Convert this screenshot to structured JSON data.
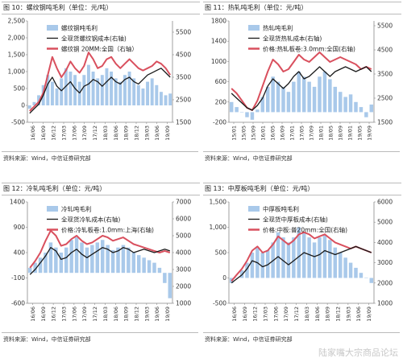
{
  "watermark": "陆家嘴大宗商品论坛",
  "colors": {
    "bar": "#a9c9ea",
    "cost": "#1a1a1a",
    "price": "#d9505e"
  },
  "chart_data": [
    {
      "type": "bar+line",
      "figure_label": "图 10：螺纹钢吨毛利（单位：元/吨）",
      "source": "资料来源：Wind，中信证券研究部",
      "left_axis": {
        "ylim": [
          -500,
          2500
        ],
        "ticks": [
          -500,
          0,
          500,
          1000,
          1500,
          2000,
          2500
        ],
        "labels": [
          "-500",
          "0",
          "500",
          "1,000",
          "1,500",
          "2,000",
          "2,500"
        ]
      },
      "right_axis": {
        "ylim": [
          1500,
          6000
        ],
        "ticks": [
          1500,
          2500,
          3500,
          4500,
          5500
        ],
        "labels": [
          "1500",
          "2500",
          "3500",
          "4500",
          "5500"
        ]
      },
      "x_ticks": [
        "16/06",
        "16/09",
        "16/12",
        "17/03",
        "17/06",
        "17/09",
        "17/12",
        "18/03",
        "18/06",
        "18/09",
        "18/12",
        "19/03",
        "19/06",
        "19/09"
      ],
      "legend": [
        {
          "name": "螺纹钢吨毛利",
          "kind": "bar"
        },
        {
          "name": "全现货螺纹钢成本(右轴)",
          "kind": "cost"
        },
        {
          "name": "螺纹钢 20MM:全国（右轴）",
          "kind": "price"
        }
      ],
      "bars": [
        -100,
        100,
        300,
        600,
        900,
        700,
        500,
        800,
        1100,
        1000,
        900,
        700,
        900,
        1200,
        1000,
        800,
        900,
        1100,
        1000,
        800,
        700,
        900,
        1000,
        800,
        600,
        500,
        700,
        800,
        600,
        400,
        300,
        350
      ],
      "cost": [
        1900,
        2100,
        2300,
        2700,
        3200,
        3500,
        3100,
        2900,
        3100,
        3300,
        3000,
        2800,
        3100,
        3200,
        3400,
        3300,
        3100,
        3300,
        3500,
        3300,
        3200,
        3400,
        3500,
        3300,
        3200,
        3400,
        3600,
        3700,
        3800,
        3900,
        3700,
        3500
      ],
      "price": [
        2000,
        2200,
        2400,
        2800,
        3600,
        4400,
        3900,
        3500,
        3800,
        4200,
        3900,
        3700,
        4000,
        4600,
        4300,
        3900,
        4000,
        4300,
        4400,
        4100,
        3900,
        4100,
        4300,
        4100,
        3900,
        3800,
        3900,
        4000,
        4200,
        4100,
        3900,
        3600
      ]
    },
    {
      "type": "bar+line",
      "figure_label": "图 11：热轧吨毛利（单位：元/吨）",
      "source": "资料来源：Wind，中信证券研究部",
      "left_axis": {
        "ylim": [
          -200,
          1800
        ],
        "ticks": [
          -200,
          200,
          600,
          1000,
          1400,
          1800
        ],
        "labels": [
          "-200",
          "200",
          "600",
          "1000",
          "1400",
          "1800"
        ]
      },
      "right_axis": {
        "ylim": [
          1500,
          5700
        ],
        "ticks": [
          1500,
          2500,
          3500,
          4500,
          5500
        ],
        "labels": [
          "1500",
          "2500",
          "3500",
          "4500",
          "5500"
        ]
      },
      "x_ticks": [
        "15/01",
        "15/05",
        "15/09",
        "16/01",
        "16/05",
        "16/09",
        "17/01",
        "17/05",
        "17/09",
        "18/01",
        "18/05",
        "18/09",
        "19/01",
        "19/05",
        "19/09"
      ],
      "legend": [
        {
          "name": "热轧吨毛利",
          "kind": "bar"
        },
        {
          "name": "全现货热轧成本(右轴)",
          "kind": "cost"
        },
        {
          "name": "价格:热轧板卷:3.0mm:全国(右轴)",
          "kind": "price"
        }
      ],
      "bars": [
        200,
        100,
        0,
        -100,
        -150,
        50,
        300,
        500,
        700,
        600,
        500,
        400,
        600,
        800,
        700,
        600,
        500,
        700,
        800,
        650,
        500,
        400,
        300,
        350,
        200,
        100,
        -100,
        150
      ],
      "cost": [
        2700,
        2500,
        2300,
        2100,
        2000,
        2200,
        2500,
        3000,
        3300,
        3100,
        2900,
        3100,
        3400,
        3600,
        3300,
        3400,
        3600,
        3800,
        3600,
        3400,
        3600,
        3700,
        3800,
        3700,
        3600,
        3700,
        3800,
        3600
      ],
      "price": [
        2900,
        2700,
        2400,
        2100,
        2000,
        2400,
        3000,
        3600,
        4100,
        3900,
        3600,
        3700,
        4000,
        4300,
        4100,
        4000,
        4200,
        4400,
        4200,
        4000,
        4100,
        4200,
        4100,
        4000,
        3900,
        3700,
        3800,
        3700
      ]
    },
    {
      "type": "bar+line",
      "figure_label": "图 12：冷轧吨毛利（单位：元/吨）",
      "source": "资料来源：Wind，中信证券研究部",
      "left_axis": {
        "ylim": [
          -600,
          1400
        ],
        "ticks": [
          -600,
          -100,
          400,
          900,
          1400
        ],
        "labels": [
          "-600",
          "-100",
          "400",
          "900",
          "1400"
        ]
      },
      "right_axis": {
        "ylim": [
          1000,
          7000
        ],
        "ticks": [
          1000,
          2000,
          3000,
          4000,
          5000,
          6000,
          7000
        ],
        "labels": [
          "1000",
          "2000",
          "3000",
          "4000",
          "5000",
          "6000",
          "7000"
        ]
      },
      "x_ticks": [
        "16/06",
        "16/09",
        "16/12",
        "17/03",
        "17/06",
        "17/09",
        "17/12",
        "18/03",
        "18/06",
        "18/09",
        "18/12",
        "19/03",
        "19/06",
        "19/09"
      ],
      "legend": [
        {
          "name": "冷轧吨毛利",
          "kind": "bar"
        },
        {
          "name": "全现货冷轧成本(右轴)",
          "kind": "cost"
        },
        {
          "name": "价格:冷轧板卷:1.0mm:上海(右轴)",
          "kind": "price"
        }
      ],
      "bars": [
        100,
        200,
        300,
        400,
        600,
        500,
        400,
        500,
        650,
        700,
        600,
        500,
        550,
        600,
        650,
        550,
        450,
        500,
        550,
        500,
        400,
        350,
        300,
        250,
        200,
        100,
        -200,
        -500
      ],
      "cost": [
        2700,
        3000,
        3400,
        3800,
        4300,
        4100,
        3600,
        3700,
        4000,
        4200,
        3900,
        3700,
        3900,
        4100,
        4300,
        4200,
        4000,
        4100,
        4300,
        4200,
        4000,
        4100,
        4200,
        4100,
        4000,
        4100,
        4200,
        4100
      ],
      "price": [
        3100,
        3500,
        4000,
        4700,
        5300,
        5000,
        4400,
        4500,
        4800,
        5000,
        4700,
        4500,
        4600,
        4800,
        5000,
        4900,
        4700,
        4800,
        4900,
        4700,
        4500,
        4400,
        4300,
        4200,
        4100,
        4000,
        4100,
        4000
      ]
    },
    {
      "type": "bar+line",
      "figure_label": "图 13：中厚板吨毛利（单位：元/吨）",
      "source": "资料来源：Wind，中信证券研究部",
      "left_axis": {
        "ylim": [
          -500,
          1500
        ],
        "ticks": [
          -500,
          0,
          500,
          1000,
          1500
        ],
        "labels": [
          "-500",
          "0",
          "500",
          "1,000",
          "1,500"
        ]
      },
      "right_axis": {
        "ylim": [
          1000,
          6000
        ],
        "ticks": [
          1000,
          2000,
          3000,
          4000,
          5000,
          6000
        ],
        "labels": [
          "1000",
          "2000",
          "3000",
          "4000",
          "5000",
          "6000"
        ]
      },
      "x_ticks": [
        "16/06",
        "16/09",
        "16/12",
        "17/03",
        "17/06",
        "17/09",
        "17/12",
        "18/03",
        "18/06",
        "18/09",
        "18/12",
        "19/03",
        "19/06",
        "19/09"
      ],
      "legend": [
        {
          "name": "中厚板吨毛利",
          "kind": "bar"
        },
        {
          "name": "全现货中厚板成本(右轴)",
          "kind": "cost"
        },
        {
          "name": "价格:中板:普20mm:全国(右轴)",
          "kind": "price"
        }
      ],
      "bars": [
        -100,
        0,
        150,
        300,
        500,
        600,
        500,
        550,
        700,
        900,
        800,
        700,
        800,
        1000,
        900,
        800,
        700,
        800,
        850,
        750,
        600,
        500,
        400,
        300,
        200,
        100,
        0,
        -100
      ],
      "cost": [
        2000,
        2200,
        2400,
        2700,
        3100,
        3000,
        2800,
        2900,
        3100,
        3300,
        3100,
        2900,
        3100,
        3300,
        3500,
        3400,
        3300,
        3400,
        3600,
        3500,
        3400,
        3500,
        3600,
        3700,
        3800,
        3700,
        3600,
        3500
      ],
      "price": [
        2100,
        2400,
        2700,
        3100,
        3600,
        3800,
        3500,
        3600,
        3900,
        4300,
        4100,
        3900,
        4100,
        4400,
        4500,
        4400,
        4200,
        4300,
        4400,
        4200,
        4000,
        3900,
        3800,
        3700,
        3800,
        3700,
        3600,
        3500
      ]
    }
  ]
}
